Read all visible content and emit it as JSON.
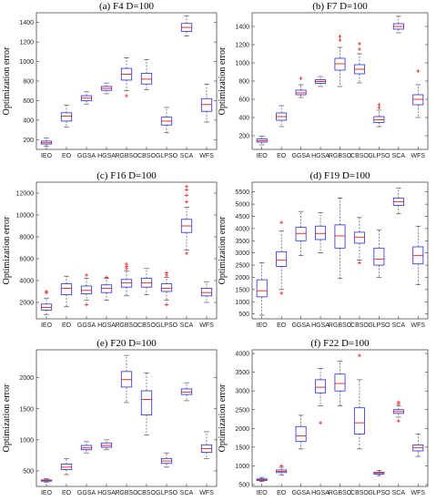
{
  "figure": {
    "categories": [
      "IEO",
      "EO",
      "GGSA",
      "HGSA",
      "RGBSO",
      "CBSO",
      "GLPSO",
      "SCA",
      "WFS"
    ],
    "box_color": "#2b2bd6",
    "median_color": "#e02020",
    "outlier_color": "#e02020"
  },
  "chart_data": [
    {
      "type": "box",
      "title": "(a) F4 D=100",
      "ylabel": "Optimization error",
      "ylim": [
        100,
        1500
      ],
      "yticks": [
        200,
        400,
        600,
        800,
        1000,
        1200,
        1400
      ],
      "categories": [
        "IEO",
        "EO",
        "GGSA",
        "HGSA",
        "RGBSO",
        "CBSO",
        "GLPSO",
        "SCA",
        "WFS"
      ],
      "boxes": [
        {
          "min": 135,
          "q1": 155,
          "median": 168,
          "q3": 185,
          "max": 215,
          "outliers": []
        },
        {
          "min": 330,
          "q1": 390,
          "median": 440,
          "q3": 475,
          "max": 555,
          "outliers": []
        },
        {
          "min": 565,
          "q1": 598,
          "median": 625,
          "q3": 650,
          "max": 690,
          "outliers": []
        },
        {
          "min": 670,
          "q1": 705,
          "median": 725,
          "q3": 745,
          "max": 780,
          "outliers": []
        },
        {
          "min": 700,
          "q1": 810,
          "median": 870,
          "q3": 930,
          "max": 1040,
          "outliers": [
            650
          ]
        },
        {
          "min": 710,
          "q1": 770,
          "median": 820,
          "q3": 880,
          "max": 1020,
          "outliers": []
        },
        {
          "min": 270,
          "q1": 350,
          "median": 390,
          "q3": 430,
          "max": 530,
          "outliers": []
        },
        {
          "min": 1260,
          "q1": 1310,
          "median": 1350,
          "q3": 1390,
          "max": 1470,
          "outliers": []
        },
        {
          "min": 380,
          "q1": 490,
          "median": 560,
          "q3": 620,
          "max": 770,
          "outliers": []
        }
      ]
    },
    {
      "type": "box",
      "title": "(b) F7 D=100",
      "ylabel": "Optimization error",
      "ylim": [
        50,
        1550
      ],
      "yticks": [
        200,
        400,
        600,
        800,
        1000,
        1200,
        1400
      ],
      "categories": [
        "IEO",
        "EO",
        "GGSA",
        "HGSA",
        "RGBSO",
        "CBSO",
        "GLPSO",
        "SCA",
        "WFS"
      ],
      "boxes": [
        {
          "min": 100,
          "q1": 130,
          "median": 145,
          "q3": 165,
          "max": 195,
          "outliers": []
        },
        {
          "min": 300,
          "q1": 370,
          "median": 410,
          "q3": 450,
          "max": 530,
          "outliers": []
        },
        {
          "min": 620,
          "q1": 650,
          "median": 670,
          "q3": 700,
          "max": 760,
          "outliers": [
            830
          ]
        },
        {
          "min": 740,
          "q1": 775,
          "median": 795,
          "q3": 815,
          "max": 850,
          "outliers": []
        },
        {
          "min": 740,
          "q1": 920,
          "median": 990,
          "q3": 1050,
          "max": 1170,
          "outliers": [
            1290,
            1250
          ]
        },
        {
          "min": 780,
          "q1": 880,
          "median": 930,
          "q3": 980,
          "max": 1100,
          "outliers": [
            1210,
            1150
          ]
        },
        {
          "min": 300,
          "q1": 345,
          "median": 375,
          "q3": 410,
          "max": 480,
          "outliers": [
            510,
            540
          ]
        },
        {
          "min": 1330,
          "q1": 1370,
          "median": 1400,
          "q3": 1430,
          "max": 1510,
          "outliers": []
        },
        {
          "min": 400,
          "q1": 540,
          "median": 600,
          "q3": 650,
          "max": 760,
          "outliers": [
            910
          ]
        }
      ]
    },
    {
      "type": "box",
      "title": "(c) F16 D=100",
      "ylabel": "Optimization error",
      "ylim": [
        500,
        13000
      ],
      "yticks": [
        2000,
        4000,
        6000,
        8000,
        10000,
        12000
      ],
      "categories": [
        "IEO",
        "EO",
        "GGSA",
        "HGSA",
        "RGBSO",
        "CBSO",
        "GLPSO",
        "SCA",
        "WFS"
      ],
      "boxes": [
        {
          "min": 900,
          "q1": 1300,
          "median": 1550,
          "q3": 1850,
          "max": 2400,
          "outliers": [
            2900,
            3000
          ]
        },
        {
          "min": 1600,
          "q1": 2700,
          "median": 3300,
          "q3": 3700,
          "max": 4400,
          "outliers": []
        },
        {
          "min": 2200,
          "q1": 2800,
          "median": 3100,
          "q3": 3500,
          "max": 4200,
          "outliers": [
            4500,
            1800
          ]
        },
        {
          "min": 2200,
          "q1": 2900,
          "median": 3300,
          "q3": 3600,
          "max": 4200,
          "outliers": [
            4300
          ]
        },
        {
          "min": 2600,
          "q1": 3400,
          "median": 3800,
          "q3": 4100,
          "max": 4900,
          "outliers": [
            5300,
            5500,
            5100
          ]
        },
        {
          "min": 2700,
          "q1": 3400,
          "median": 3800,
          "q3": 4200,
          "max": 5100,
          "outliers": []
        },
        {
          "min": 2200,
          "q1": 3000,
          "median": 3300,
          "q3": 3700,
          "max": 4300,
          "outliers": [
            4700,
            4500,
            1800
          ]
        },
        {
          "min": 6800,
          "q1": 8400,
          "median": 9000,
          "q3": 9600,
          "max": 10700,
          "outliers": [
            11200,
            11800,
            12600,
            12300,
            6500
          ]
        },
        {
          "min": 2000,
          "q1": 2600,
          "median": 2900,
          "q3": 3300,
          "max": 3900,
          "outliers": []
        }
      ]
    },
    {
      "type": "box",
      "title": "(d) F19 D=100",
      "ylabel": "Optimization error",
      "ylim": [
        300,
        5900
      ],
      "yticks": [
        500,
        1000,
        1500,
        2000,
        2500,
        3000,
        3500,
        4000,
        4500,
        5000,
        5500
      ],
      "categories": [
        "IEO",
        "EO",
        "GGSA",
        "HGSA",
        "RGBSO",
        "CBSO",
        "GLPSO",
        "SCA",
        "WFS"
      ],
      "boxes": [
        {
          "min": 450,
          "q1": 1200,
          "median": 1450,
          "q3": 1900,
          "max": 2600,
          "outliers": []
        },
        {
          "min": 1500,
          "q1": 2450,
          "median": 2700,
          "q3": 3050,
          "max": 3900,
          "outliers": [
            4250,
            1350
          ]
        },
        {
          "min": 2900,
          "q1": 3500,
          "median": 3800,
          "q3": 4050,
          "max": 4700,
          "outliers": []
        },
        {
          "min": 3000,
          "q1": 3550,
          "median": 3800,
          "q3": 4100,
          "max": 4650,
          "outliers": []
        },
        {
          "min": 1950,
          "q1": 3200,
          "median": 3700,
          "q3": 4150,
          "max": 5250,
          "outliers": []
        },
        {
          "min": 2700,
          "q1": 3400,
          "median": 3650,
          "q3": 3850,
          "max": 4450,
          "outliers": [
            2600
          ]
        },
        {
          "min": 2000,
          "q1": 2500,
          "median": 2750,
          "q3": 3200,
          "max": 3950,
          "outliers": []
        },
        {
          "min": 4600,
          "q1": 4950,
          "median": 5100,
          "q3": 5250,
          "max": 5650,
          "outliers": []
        },
        {
          "min": 1700,
          "q1": 2550,
          "median": 2900,
          "q3": 3250,
          "max": 4100,
          "outliers": []
        }
      ]
    },
    {
      "type": "box",
      "title": "(e) F20 D=100",
      "ylabel": "Optimization error",
      "ylim": [
        250,
        2450
      ],
      "yticks": [
        500,
        1000,
        1500,
        2000
      ],
      "categories": [
        "IEO",
        "EO",
        "GGSA",
        "HGSA",
        "RGBSO",
        "CBSO",
        "GLPSO",
        "SCA",
        "WFS"
      ],
      "boxes": [
        {
          "min": 320,
          "q1": 335,
          "median": 345,
          "q3": 355,
          "max": 375,
          "outliers": []
        },
        {
          "min": 440,
          "q1": 520,
          "median": 560,
          "q3": 610,
          "max": 700,
          "outliers": []
        },
        {
          "min": 790,
          "q1": 840,
          "median": 870,
          "q3": 910,
          "max": 970,
          "outliers": []
        },
        {
          "min": 840,
          "q1": 880,
          "median": 910,
          "q3": 950,
          "max": 1000,
          "outliers": []
        },
        {
          "min": 1600,
          "q1": 1850,
          "median": 1970,
          "q3": 2100,
          "max": 2360,
          "outliers": []
        },
        {
          "min": 1080,
          "q1": 1400,
          "median": 1650,
          "q3": 1790,
          "max": 2080,
          "outliers": []
        },
        {
          "min": 560,
          "q1": 620,
          "median": 660,
          "q3": 700,
          "max": 790,
          "outliers": []
        },
        {
          "min": 1630,
          "q1": 1730,
          "median": 1770,
          "q3": 1820,
          "max": 1920,
          "outliers": []
        },
        {
          "min": 700,
          "q1": 800,
          "median": 860,
          "q3": 920,
          "max": 1130,
          "outliers": []
        }
      ]
    },
    {
      "type": "box",
      "title": "(f) F22 D=100",
      "ylabel": "Optimization error",
      "ylim": [
        450,
        4100
      ],
      "yticks": [
        500,
        1000,
        1500,
        2000,
        2500,
        3000,
        3500,
        4000
      ],
      "categories": [
        "IEO",
        "EO",
        "GGSA",
        "HGSA",
        "RGBSO",
        "CBSO",
        "GLPSO",
        "SCA",
        "WFS"
      ],
      "boxes": [
        {
          "min": 580,
          "q1": 610,
          "median": 630,
          "q3": 650,
          "max": 690,
          "outliers": []
        },
        {
          "min": 760,
          "q1": 820,
          "median": 850,
          "q3": 890,
          "max": 960,
          "outliers": [
            1000
          ]
        },
        {
          "min": 1450,
          "q1": 1650,
          "median": 1800,
          "q3": 2050,
          "max": 2350,
          "outliers": []
        },
        {
          "min": 2600,
          "q1": 2950,
          "median": 3100,
          "q3": 3300,
          "max": 3600,
          "outliers": [
            2150
          ]
        },
        {
          "min": 2600,
          "q1": 3000,
          "median": 3200,
          "q3": 3450,
          "max": 3800,
          "outliers": []
        },
        {
          "min": 1450,
          "q1": 1850,
          "median": 2150,
          "q3": 2550,
          "max": 3300,
          "outliers": [
            3950
          ]
        },
        {
          "min": 740,
          "q1": 780,
          "median": 810,
          "q3": 830,
          "max": 880,
          "outliers": []
        },
        {
          "min": 2300,
          "q1": 2400,
          "median": 2450,
          "q3": 2500,
          "max": 2600,
          "outliers": [
            2650,
            2700,
            2200
          ]
        },
        {
          "min": 1250,
          "q1": 1400,
          "median": 1480,
          "q3": 1560,
          "max": 1850,
          "outliers": []
        }
      ]
    }
  ]
}
